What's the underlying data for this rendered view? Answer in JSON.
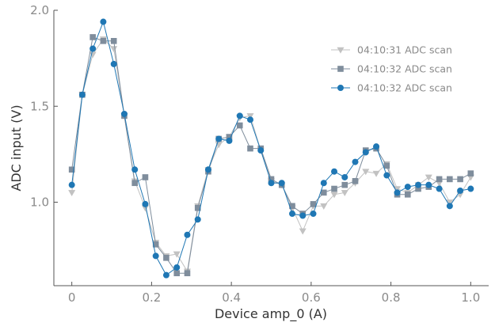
{
  "chart_data": {
    "type": "line",
    "title": "",
    "xlabel": "Device amp_0 (A)",
    "ylabel": "ADC input (V)",
    "xlim": [
      -0.045,
      1.045
    ],
    "ylim": [
      0.565,
      2.0
    ],
    "xticks": [
      0,
      0.2,
      0.4,
      0.6,
      0.8,
      1.0
    ],
    "xtick_labels": [
      "0",
      "0.2",
      "0.4",
      "0.6",
      "0.8",
      "1.0"
    ],
    "yticks": [
      1.0,
      1.5,
      2.0
    ],
    "ytick_labels": [
      "1.0",
      "1.5",
      "2.0"
    ],
    "grid": false,
    "legend_position": "top-right",
    "x": [
      0.0,
      0.0263,
      0.0526,
      0.0789,
      0.1053,
      0.1316,
      0.1579,
      0.1842,
      0.2105,
      0.2368,
      0.2632,
      0.2895,
      0.3158,
      0.3421,
      0.3684,
      0.3947,
      0.4211,
      0.4474,
      0.4737,
      0.5,
      0.5263,
      0.5526,
      0.5789,
      0.6053,
      0.6316,
      0.6579,
      0.6842,
      0.7105,
      0.7368,
      0.7632,
      0.7895,
      0.8158,
      0.8421,
      0.8684,
      0.8947,
      0.9211,
      0.9474,
      0.9737,
      1.0
    ],
    "series": [
      {
        "name": "04:10:31 ADC scan",
        "color": "#c2c2c2",
        "marker": "triangle-down",
        "values": [
          1.05,
          1.56,
          1.77,
          1.85,
          1.8,
          1.45,
          1.11,
          0.97,
          0.79,
          0.72,
          0.73,
          0.64,
          0.98,
          1.17,
          1.3,
          1.34,
          1.44,
          1.45,
          1.27,
          1.11,
          1.09,
          0.97,
          0.85,
          0.98,
          0.98,
          1.04,
          1.05,
          1.1,
          1.16,
          1.15,
          1.2,
          1.07,
          1.05,
          1.09,
          1.13,
          1.1,
          1.0,
          1.04,
          1.13
        ]
      },
      {
        "name": "04:10:32 ADC scan",
        "color": "#7f8d9c",
        "marker": "square",
        "values": [
          1.17,
          1.56,
          1.86,
          1.84,
          1.84,
          1.45,
          1.1,
          1.13,
          0.78,
          0.71,
          0.63,
          0.63,
          0.97,
          1.16,
          1.33,
          1.34,
          1.4,
          1.28,
          1.28,
          1.12,
          1.09,
          0.98,
          0.94,
          0.99,
          1.05,
          1.07,
          1.09,
          1.11,
          1.27,
          1.28,
          1.19,
          1.04,
          1.04,
          1.07,
          1.08,
          1.12,
          1.12,
          1.12,
          1.15
        ]
      },
      {
        "name": "04:10:32 ADC scan",
        "color": "#1f77b4",
        "marker": "circle",
        "values": [
          1.09,
          1.56,
          1.8,
          1.94,
          1.72,
          1.46,
          1.17,
          0.99,
          0.72,
          0.62,
          0.66,
          0.83,
          0.91,
          1.17,
          1.33,
          1.32,
          1.45,
          1.43,
          1.27,
          1.1,
          1.1,
          0.94,
          0.93,
          0.94,
          1.1,
          1.16,
          1.13,
          1.21,
          1.26,
          1.29,
          1.14,
          1.05,
          1.08,
          1.09,
          1.09,
          1.07,
          0.98,
          1.06,
          1.07
        ]
      }
    ]
  }
}
